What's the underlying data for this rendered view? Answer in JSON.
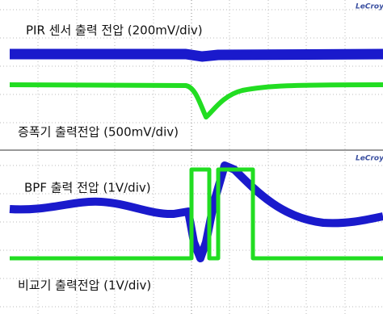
{
  "top_panel": {
    "brand": "LeCroy",
    "labels": [
      "PIR 센서 출력 전압 (200mV/div)",
      "증폭기 출력전압 (500mV/div)"
    ]
  },
  "bottom_panel": {
    "brand": "LeCroy",
    "labels": [
      "BPF 출력 전압 (1V/div)",
      "비교기 출력전압 (1V/div)"
    ]
  }
}
